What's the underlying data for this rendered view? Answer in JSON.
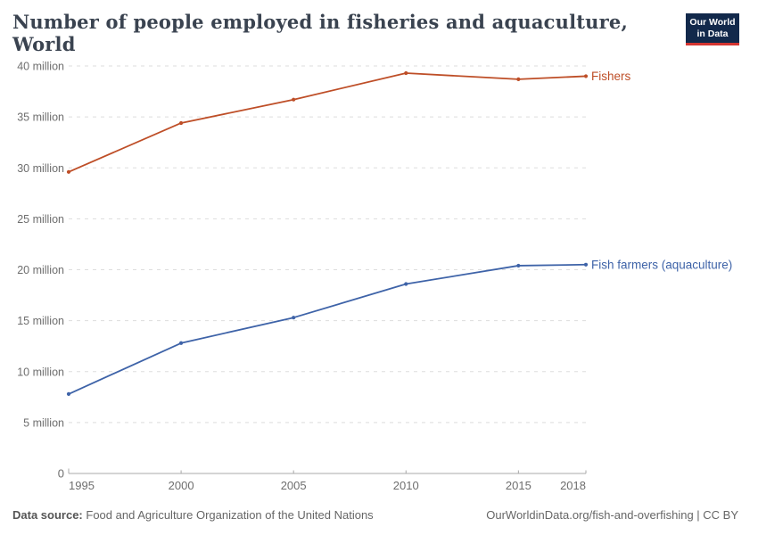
{
  "header": {
    "title": "Number of people employed in fisheries and aquaculture, World",
    "logo": {
      "line1": "Our World",
      "line2": "in Data",
      "bg_color": "#12294b",
      "accent_color": "#d43531"
    }
  },
  "footer": {
    "datasource_label": "Data source:",
    "datasource_value": "Food and Agriculture Organization of the United Nations",
    "attribution": "OurWorldinData.org/fish-and-overfishing | CC BY"
  },
  "chart_data": {
    "type": "line",
    "title": "Number of people employed in fisheries and aquaculture, World",
    "x": [
      1995,
      2000,
      2005,
      2010,
      2015,
      2018
    ],
    "x_tick_labels": [
      "1995",
      "2000",
      "2005",
      "2010",
      "2015",
      "2018"
    ],
    "series": [
      {
        "name": "Fishers",
        "color": "#be4e27",
        "values": [
          29.6,
          34.4,
          36.7,
          39.3,
          38.7,
          39.0
        ]
      },
      {
        "name": "Fish farmers (aquaculture)",
        "color": "#3e63a8",
        "values": [
          7.8,
          12.8,
          15.3,
          18.6,
          20.4,
          20.5
        ]
      }
    ],
    "xlabel": "",
    "ylabel": "",
    "ylim": [
      0,
      40
    ],
    "xlim": [
      1995,
      2018
    ],
    "y_ticks": [
      0,
      5,
      10,
      15,
      20,
      25,
      30,
      35,
      40
    ],
    "y_tick_suffix": " million",
    "y_zero_label": "0",
    "grid": "horizontal-dashed",
    "legend_position": "end-of-line",
    "style": {
      "grid_color": "#dddddd",
      "axis_color": "#a8a8a8",
      "tick_label_color": "#6e6e6e",
      "marker": "dot"
    }
  }
}
